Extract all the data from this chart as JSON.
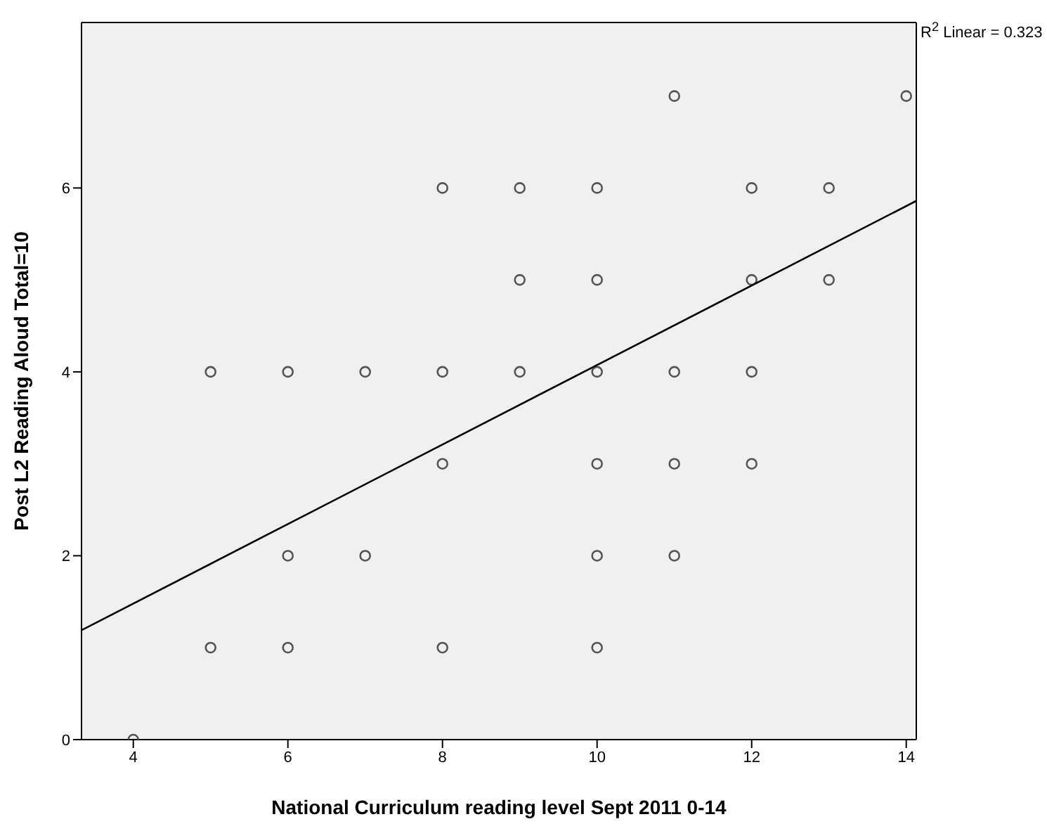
{
  "chart_data": {
    "type": "scatter",
    "xlabel": "National Curriculum reading level Sept 2011 0-14",
    "ylabel": "Post L2 Reading Aloud Total=10",
    "xlim": [
      3.33,
      14.13
    ],
    "ylim": [
      0,
      7.8
    ],
    "xticks": [
      4,
      6,
      8,
      10,
      12,
      14
    ],
    "yticks": [
      0,
      2,
      4,
      6
    ],
    "grid": false,
    "legend": false,
    "annotations": [
      "R$^{2}$ Linear = 0.323"
    ],
    "series": [
      {
        "marker": "circle",
        "color": "#555555",
        "x": [
          4,
          5,
          5,
          6,
          6,
          6,
          7,
          7,
          8,
          8,
          8,
          8,
          9,
          9,
          9,
          10,
          10,
          10,
          10,
          10,
          10,
          11,
          11,
          11,
          11,
          12,
          12,
          12,
          12,
          13,
          13,
          14
        ],
        "values": [
          0,
          4,
          1,
          4,
          2,
          1,
          4,
          2,
          6,
          4,
          3,
          1,
          6,
          5,
          4,
          6,
          5,
          4,
          3,
          2,
          1,
          7,
          4,
          3,
          2,
          6,
          5,
          4,
          3,
          6,
          5,
          7
        ]
      },
      {
        "type": "line",
        "marker": "none",
        "color": "#000000",
        "x": [
          3.33,
          14.13
        ],
        "values": [
          1.19,
          5.86
        ]
      }
    ]
  }
}
